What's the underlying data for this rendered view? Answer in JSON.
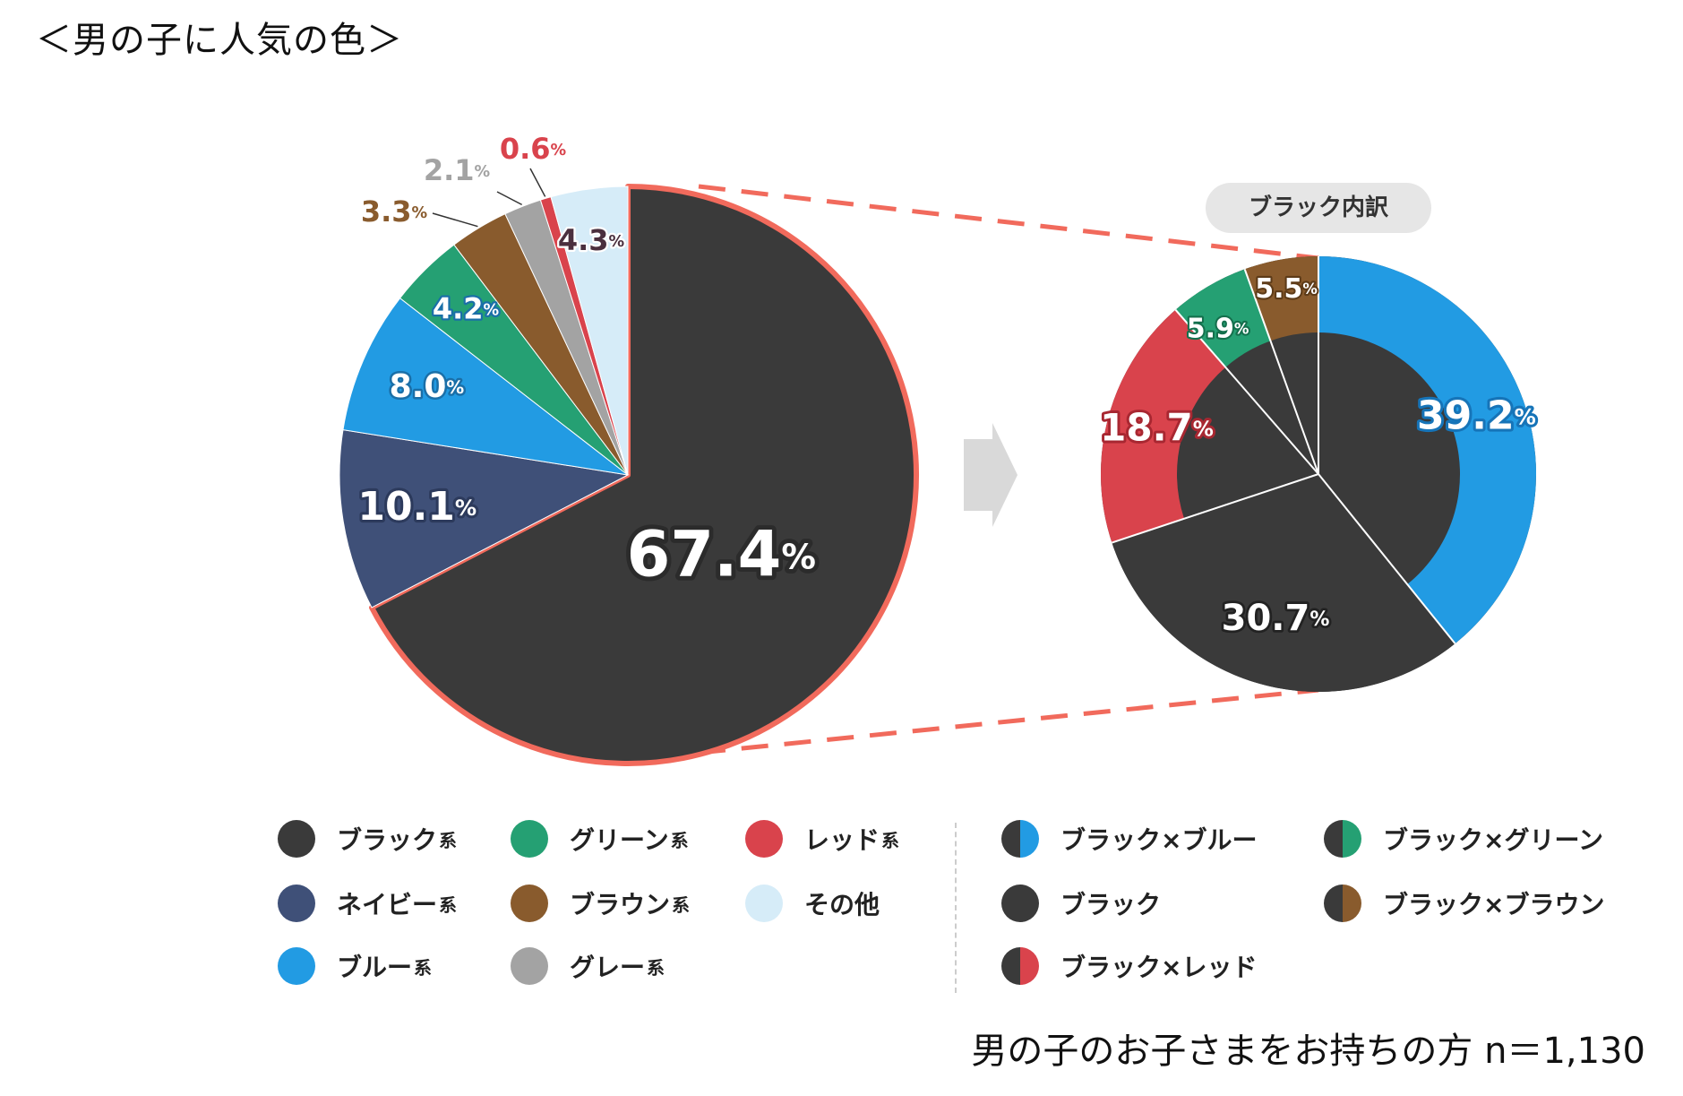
{
  "title": "＜男の子に人気の色＞",
  "footnote": "男の子のお子さまをお持ちの方 n＝1,130",
  "breakdown_label": "ブラック内訳",
  "percent_sign": "%",
  "colors": {
    "black": "#3a3a3a",
    "navy": "#3f5078",
    "blue": "#229be3",
    "green": "#25a073",
    "brown": "#895b2d",
    "gray": "#a3a3a3",
    "red": "#d9434c",
    "other": "#d6ecf8",
    "highlight": "#f16a5c"
  },
  "chart_data": [
    {
      "type": "pie",
      "series": [
        {
          "label": "ブラック系",
          "value": 67.4,
          "color": "#3a3a3a"
        },
        {
          "label": "ネイビー系",
          "value": 10.1,
          "color": "#3f5078"
        },
        {
          "label": "ブルー系",
          "value": 8.0,
          "color": "#229be3"
        },
        {
          "label": "グリーン系",
          "value": 4.2,
          "color": "#25a073"
        },
        {
          "label": "ブラウン系",
          "value": 3.3,
          "color": "#895b2d"
        },
        {
          "label": "グレー系",
          "value": 2.1,
          "color": "#a3a3a3"
        },
        {
          "label": "レッド系",
          "value": 0.6,
          "color": "#d9434c"
        },
        {
          "label": "その他",
          "value": 4.3,
          "color": "#d6ecf8"
        }
      ]
    },
    {
      "type": "pie",
      "title": "ブラック内訳",
      "series": [
        {
          "label": "ブラック×ブルー",
          "value": 39.2,
          "color": "#229be3"
        },
        {
          "label": "ブラック",
          "value": 30.7,
          "color": "#3a3a3a"
        },
        {
          "label": "ブラック×レッド",
          "value": 18.7,
          "color": "#d9434c"
        },
        {
          "label": "ブラック×グリーン",
          "value": 5.9,
          "color": "#25a073"
        },
        {
          "label": "ブラック×ブラウン",
          "value": 5.5,
          "color": "#895b2d"
        }
      ]
    }
  ],
  "legend_left": [
    {
      "label": "ブラック",
      "suffix": "系",
      "color": "#3a3a3a"
    },
    {
      "label": "グリーン",
      "suffix": "系",
      "color": "#25a073"
    },
    {
      "label": "レッド",
      "suffix": "系",
      "color": "#d9434c"
    },
    {
      "label": "ネイビー",
      "suffix": "系",
      "color": "#3f5078"
    },
    {
      "label": "ブラウン",
      "suffix": "系",
      "color": "#895b2d"
    },
    {
      "label": "その他",
      "suffix": "",
      "color": "#d6ecf8"
    },
    {
      "label": "ブルー",
      "suffix": "系",
      "color": "#229be3"
    },
    {
      "label": "グレー",
      "suffix": "系",
      "color": "#a3a3a3"
    }
  ],
  "legend_right": [
    {
      "label": "ブラック×ブルー",
      "color": "#229be3",
      "split": true
    },
    {
      "label": "ブラック×グリーン",
      "color": "#25a073",
      "split": true
    },
    {
      "label": "ブラック",
      "color": "#3a3a3a",
      "split": false
    },
    {
      "label": "ブラック×ブラウン",
      "color": "#895b2d",
      "split": true
    },
    {
      "label": "ブラック×レッド",
      "color": "#d9434c",
      "split": true
    }
  ]
}
